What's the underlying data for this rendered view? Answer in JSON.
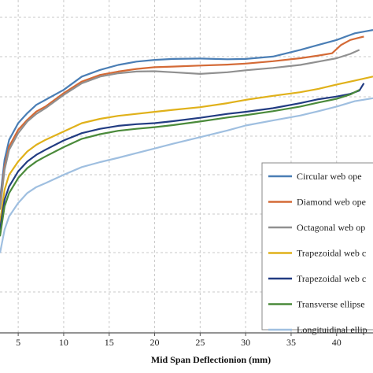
{
  "chart_data": {
    "type": "line",
    "title": "",
    "xlabel": "Mid Span Deflectionion (mm)",
    "ylabel": "",
    "xlim": [
      3,
      44
    ],
    "ylim": [
      0,
      100
    ],
    "x_ticks": [
      5,
      10,
      15,
      20,
      25,
      30,
      35,
      40
    ],
    "grid": true,
    "legend_position": "right",
    "series": [
      {
        "name": "Circular web ope",
        "color": "#4a7eb5",
        "x": [
          3,
          3.5,
          4,
          5,
          6,
          7,
          8,
          10,
          12,
          14,
          16,
          18,
          20,
          22,
          25,
          28,
          30,
          33,
          36,
          38,
          40,
          41,
          42,
          43,
          44
        ],
        "y": [
          40,
          52,
          58,
          63,
          66,
          68.5,
          70,
          73,
          77,
          79,
          80.5,
          81.5,
          82,
          82.3,
          82.4,
          82.2,
          82.3,
          83,
          85,
          86.5,
          88,
          89,
          90,
          90.5,
          91
        ]
      },
      {
        "name": "Diamond web ope",
        "color": "#d46a36",
        "x": [
          3,
          3.5,
          4,
          5,
          6,
          7,
          8,
          10,
          12,
          14,
          16,
          18,
          20,
          22,
          25,
          28,
          30,
          33,
          36,
          38,
          39.5,
          40.5,
          41.5,
          42.5,
          43
        ],
        "y": [
          38,
          50,
          56,
          61,
          64,
          66.5,
          68,
          72,
          75.5,
          77.5,
          78.5,
          79.3,
          79.8,
          80,
          80.3,
          80.6,
          80.9,
          81.6,
          82.5,
          83.3,
          84,
          86.5,
          88,
          88.7,
          89
        ]
      },
      {
        "name": "Octagonal web op",
        "color": "#909090",
        "x": [
          3,
          3.5,
          4,
          5,
          6,
          7,
          8,
          10,
          12,
          14,
          16,
          18,
          20,
          22,
          25,
          28,
          30,
          33,
          36,
          38,
          40,
          41.5,
          42.5
        ],
        "y": [
          37,
          49,
          55,
          60,
          63.5,
          65.8,
          67.5,
          71.5,
          75,
          77,
          78,
          78.5,
          78.6,
          78.3,
          77.8,
          78.3,
          78.9,
          79.6,
          80.5,
          81.5,
          82.5,
          83.8,
          85
        ]
      },
      {
        "name": "Trapezoidal web c",
        "color": "#e0b11a",
        "x": [
          3,
          3.5,
          4,
          5,
          6,
          7,
          8,
          10,
          12,
          14,
          16,
          18,
          20,
          22,
          25,
          28,
          30,
          33,
          36,
          38,
          40,
          42,
          44
        ],
        "y": [
          33,
          43,
          47.5,
          51.5,
          54.5,
          56.5,
          58,
          60.5,
          63,
          64.3,
          65.2,
          65.8,
          66.4,
          67,
          67.8,
          69,
          70,
          71.2,
          72.3,
          73.3,
          74.6,
          75.8,
          77
        ]
      },
      {
        "name": "Trapezoidal web c",
        "color": "#223c82",
        "x": [
          3,
          3.5,
          4,
          5,
          6,
          7,
          8,
          10,
          12,
          14,
          16,
          18,
          20,
          22,
          25,
          28,
          30,
          33,
          36,
          38,
          40,
          41.5,
          42.5,
          43
        ],
        "y": [
          31,
          40,
          44,
          48.5,
          51.5,
          53.5,
          55,
          57.8,
          60,
          61.3,
          62.2,
          62.7,
          63,
          63.6,
          64.6,
          65.8,
          66.4,
          67.5,
          69,
          70.2,
          71,
          71.8,
          72.8,
          75
        ]
      },
      {
        "name": "Transverse ellipse",
        "color": "#4a8a3a",
        "x": [
          3,
          3.5,
          4,
          5,
          6,
          7,
          8,
          10,
          12,
          14,
          16,
          18,
          20,
          22,
          25,
          28,
          30,
          33,
          36,
          38,
          40,
          41.5,
          42.5
        ],
        "y": [
          29,
          38,
          42,
          46.5,
          49.5,
          51.5,
          53,
          55.8,
          58.3,
          59.7,
          60.7,
          61.3,
          61.8,
          62.4,
          63.5,
          64.7,
          65.4,
          66.6,
          68,
          69.2,
          70.3,
          71.6,
          73
        ]
      },
      {
        "name": "Longituidinal ellip",
        "color": "#9fbfe0",
        "x": [
          3,
          3.5,
          4,
          5,
          6,
          7,
          8,
          10,
          12,
          14,
          16,
          18,
          20,
          22,
          25,
          28,
          30,
          33,
          36,
          38,
          40,
          42,
          44
        ],
        "y": [
          24,
          31,
          35,
          39,
          42,
          43.8,
          45,
          47.5,
          49.8,
          51.3,
          52.6,
          54,
          55.4,
          56.8,
          58.8,
          60.8,
          62.3,
          63.8,
          65.3,
          66.6,
          68,
          69.6,
          70.5
        ]
      }
    ]
  }
}
